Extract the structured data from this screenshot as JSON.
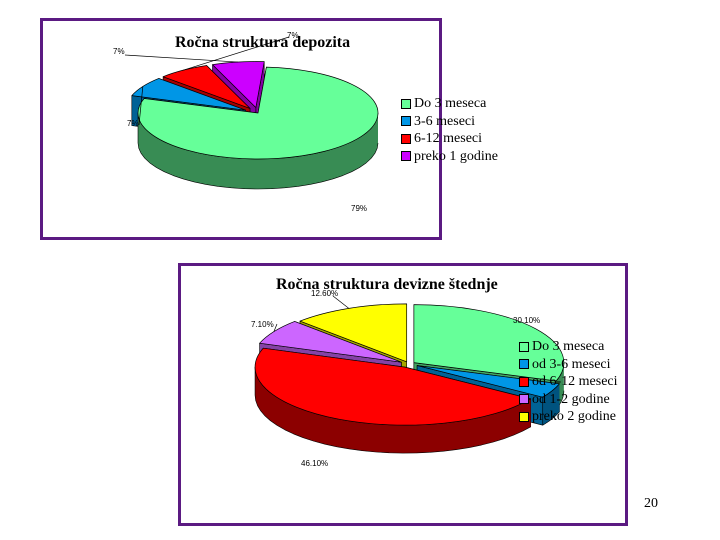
{
  "chart_data": [
    {
      "type": "pie",
      "title": "Ročna struktura depozita",
      "categories": [
        "Do 3 meseca",
        "3-6 meseci",
        "6-12 meseci",
        "preko 1 godine"
      ],
      "values": [
        79,
        7,
        7,
        7
      ],
      "value_labels": [
        "79%",
        "7%",
        "7%",
        "7%"
      ],
      "colors": [
        "#66ff99",
        "#0096e6",
        "#ff0000",
        "#cc00ff"
      ],
      "legend": "right",
      "exploded": true,
      "three_d": true
    },
    {
      "type": "pie",
      "title": "Ročna struktura devizne štednje",
      "categories": [
        "Do 3 meseca",
        "od 3-6 meseci",
        "od 6-12 meseci",
        "od 1-2 godine",
        "preko 2 godine"
      ],
      "values": [
        30.1,
        4.1,
        46.1,
        7.1,
        12.6
      ],
      "value_labels": [
        "30.10%",
        "",
        "46.10%",
        "7.10%",
        "12.60%"
      ],
      "colors": [
        "#66ff99",
        "#0096e6",
        "#ff0000",
        "#cc66ff",
        "#ffff00"
      ],
      "legend": "right",
      "exploded": true,
      "three_d": true
    }
  ],
  "page_number": "20"
}
